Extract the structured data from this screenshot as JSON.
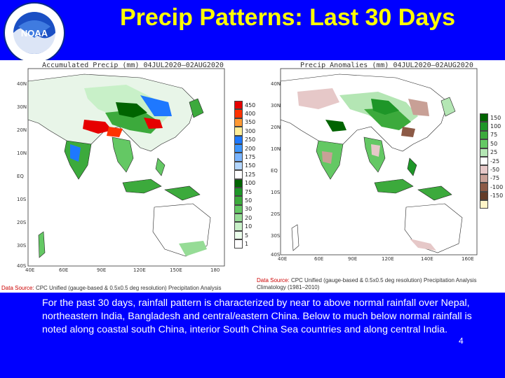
{
  "slide": {
    "title": "Precip Patterns: Last 30 Days",
    "caption": "For the past 30 days, rainfall pattern is characterized by near to above normal rainfall over Nepal, northeastern India, Bangladesh and central/eastern China. Below to much below normal rainfall is noted along coastal south China, interior South China Sea countries and along central India.",
    "page_number": "4"
  },
  "logo": {
    "text": "NOAA",
    "ring_text": "NATIONAL OCEANIC AND ATMOSPHERIC ADMINISTRATION · U.S. DEPARTMENT OF COMMERCE"
  },
  "left_map": {
    "title": "Accumulated Precip (mm) 04JUL2020–02AUG2020",
    "source_label": "Data Source:",
    "source_text": "CPC Unified (gauge-based & 0.5x0.5 deg resolution) Precipitation Analysis",
    "lat_labels": [
      "40N",
      "30N",
      "20N",
      "10N",
      "EQ",
      "10S",
      "20S",
      "30S",
      "40S"
    ],
    "lon_labels": [
      "40E",
      "60E",
      "90E",
      "120E",
      "150E",
      "180"
    ],
    "colorbar": [
      {
        "label": "450",
        "color": "#e60000"
      },
      {
        "label": "400",
        "color": "#ff3300"
      },
      {
        "label": "350",
        "color": "#ff9933"
      },
      {
        "label": "300",
        "color": "#ffee99"
      },
      {
        "label": "250",
        "color": "#1e78ff"
      },
      {
        "label": "200",
        "color": "#3c96ff"
      },
      {
        "label": "175",
        "color": "#78b4ff"
      },
      {
        "label": "150",
        "color": "#b4d7ff"
      },
      {
        "label": "125",
        "color": "#ffffff"
      },
      {
        "label": "100",
        "color": "#006400"
      },
      {
        "label": "75",
        "color": "#1e9628"
      },
      {
        "label": "50",
        "color": "#3caa3c"
      },
      {
        "label": "30",
        "color": "#64c864"
      },
      {
        "label": "20",
        "color": "#96dc96"
      },
      {
        "label": "10",
        "color": "#c8f0c8"
      },
      {
        "label": "5",
        "color": "#ebffeb"
      },
      {
        "label": "1",
        "color": "#ffffff"
      }
    ]
  },
  "right_map": {
    "title": "Precip Anomalies (mm) 04JUL2020–02AUG2020",
    "source_label": "Data Source:",
    "source_text": "CPC Unified (gauge-based & 0.5x0.5 deg resolution) Precipitation Analysis Climatology (1981–2010)",
    "lat_labels": [
      "40N",
      "30N",
      "20N",
      "10N",
      "EQ",
      "10S",
      "20S",
      "30S",
      "40S"
    ],
    "lon_labels": [
      "40E",
      "60E",
      "90E",
      "120E",
      "140E",
      "160E"
    ],
    "colorbar": [
      {
        "label": "150",
        "color": "#006400"
      },
      {
        "label": "100",
        "color": "#1e9628"
      },
      {
        "label": "75",
        "color": "#3caa3c"
      },
      {
        "label": "50",
        "color": "#64c864"
      },
      {
        "label": "25",
        "color": "#b4e6b4"
      },
      {
        "label": "-25",
        "color": "#ffffff"
      },
      {
        "label": "-50",
        "color": "#e6c8c8"
      },
      {
        "label": "-75",
        "color": "#c8a096"
      },
      {
        "label": "-100",
        "color": "#8c5a46"
      },
      {
        "label": "-150",
        "color": "#643c28"
      },
      {
        "label": "",
        "color": "#fff5c8"
      }
    ]
  }
}
